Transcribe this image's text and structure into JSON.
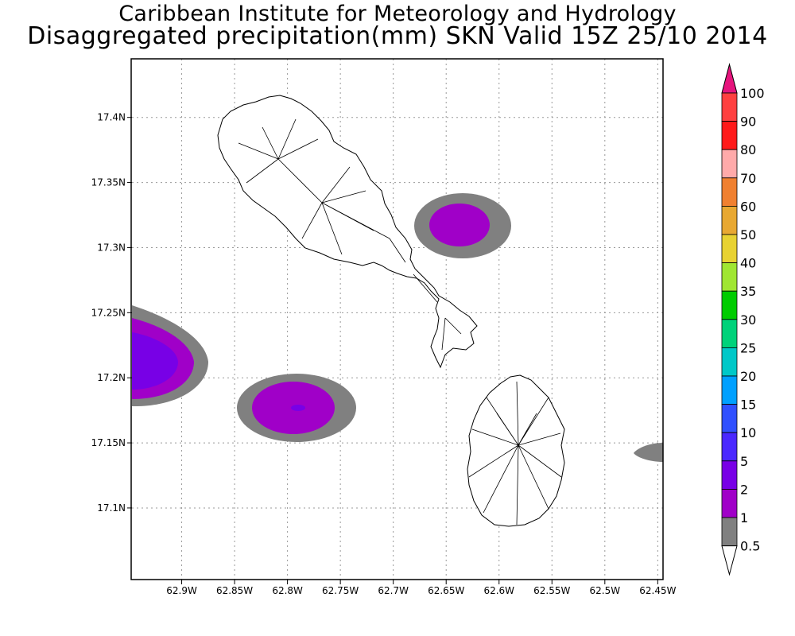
{
  "header": {
    "title": "Caribbean Institute for Meteorology and Hydrology",
    "subtitle": "Disaggregated precipitation(mm) SKN Valid 15Z 25/10 2014"
  },
  "map": {
    "lon_range": [
      -62.947,
      -62.445
    ],
    "lat_range": [
      17.045,
      17.445
    ],
    "lon_ticks": [
      {
        "value": -62.9,
        "label": "62.9W"
      },
      {
        "value": -62.85,
        "label": "62.85W"
      },
      {
        "value": -62.8,
        "label": "62.8W"
      },
      {
        "value": -62.75,
        "label": "62.75W"
      },
      {
        "value": -62.7,
        "label": "62.7W"
      },
      {
        "value": -62.65,
        "label": "62.65W"
      },
      {
        "value": -62.6,
        "label": "62.6W"
      },
      {
        "value": -62.55,
        "label": "62.55W"
      },
      {
        "value": -62.5,
        "label": "62.5W"
      },
      {
        "value": -62.45,
        "label": "62.45W"
      }
    ],
    "lat_ticks": [
      {
        "value": 17.4,
        "label": "17.4N"
      },
      {
        "value": 17.35,
        "label": "17.35N"
      },
      {
        "value": 17.3,
        "label": "17.3N"
      },
      {
        "value": 17.25,
        "label": "17.25N"
      },
      {
        "value": 17.2,
        "label": "17.2N"
      },
      {
        "value": 17.15,
        "label": "17.15N"
      },
      {
        "value": 17.1,
        "label": "17.1N"
      }
    ],
    "grid": true,
    "precip_cells": [
      {
        "region": "west edge",
        "lon": -62.935,
        "lat": 17.218,
        "max_class": "2"
      },
      {
        "region": "south-west",
        "lon": -62.79,
        "lat": 17.182,
        "max_class": "2"
      },
      {
        "region": "north-east",
        "lon": -62.645,
        "lat": 17.32,
        "max_class": "2"
      },
      {
        "region": "east edge",
        "lon": -62.46,
        "lat": 17.149,
        "max_class": "0.5"
      }
    ],
    "islands": [
      "St Kitts",
      "Nevis"
    ]
  },
  "colorbar": {
    "levels": [
      {
        "label": "100",
        "color": "#ff4040"
      },
      {
        "label": "90",
        "color": "#ff1a1a"
      },
      {
        "label": "80",
        "color": "#ffaaaa"
      },
      {
        "label": "70",
        "color": "#f08030"
      },
      {
        "label": "60",
        "color": "#e8a832"
      },
      {
        "label": "50",
        "color": "#e8d232"
      },
      {
        "label": "40",
        "color": "#a0e632"
      },
      {
        "label": "35",
        "color": "#00cc00"
      },
      {
        "label": "30",
        "color": "#00d27a"
      },
      {
        "label": "25",
        "color": "#00c8c8"
      },
      {
        "label": "20",
        "color": "#00a0ff"
      },
      {
        "label": "15",
        "color": "#3050ff"
      },
      {
        "label": "10",
        "color": "#4a28ff"
      },
      {
        "label": "5",
        "color": "#7800e6"
      },
      {
        "label": "2",
        "color": "#a000c8"
      },
      {
        "label": "1",
        "color": "#808080"
      },
      {
        "label": "0.5",
        "color": "#ffffff"
      }
    ],
    "top_arrow_color": "#e6147d",
    "bottom_arrow_color": "#ffffff"
  }
}
